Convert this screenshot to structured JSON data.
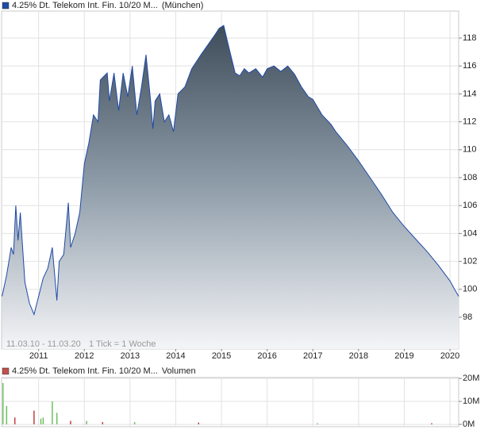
{
  "chart_data": [
    {
      "type": "area",
      "x": [
        2010.2,
        2010.3,
        2010.4,
        2010.45,
        2010.5,
        2010.55,
        2010.6,
        2010.7,
        2010.8,
        2010.9,
        2011.0,
        2011.1,
        2011.2,
        2011.3,
        2011.4,
        2011.45,
        2011.55,
        2011.65,
        2011.7,
        2011.8,
        2011.9,
        2012.0,
        2012.1,
        2012.2,
        2012.3,
        2012.35,
        2012.5,
        2012.55,
        2012.65,
        2012.75,
        2012.85,
        2012.95,
        2013.05,
        2013.15,
        2013.25,
        2013.35,
        2013.45,
        2013.5,
        2013.55,
        2013.65,
        2013.75,
        2013.85,
        2013.95,
        2014.05,
        2014.2,
        2014.35,
        2014.55,
        2014.7,
        2014.85,
        2014.95,
        2015.05,
        2015.15,
        2015.3,
        2015.4,
        2015.5,
        2015.6,
        2015.75,
        2015.9,
        2016.0,
        2016.15,
        2016.3,
        2016.45,
        2016.6,
        2016.75,
        2016.9,
        2017.0,
        2017.2,
        2017.4,
        2017.5,
        2017.75,
        2018.0,
        2018.25,
        2018.5,
        2018.75,
        2019.0,
        2019.25,
        2019.5,
        2019.75,
        2020.0,
        2020.1,
        2020.19
      ],
      "series": [
        {
          "name": "4.25% Dt. Telekom Int. Fin. 10/20 M...",
          "color": "#1f4aa8",
          "values": [
            99.5,
            101,
            103,
            102.5,
            106,
            103.5,
            105.5,
            100.5,
            99,
            98.2,
            99.5,
            100.8,
            101.5,
            103,
            99.2,
            102,
            102.5,
            106.2,
            103,
            104,
            105.5,
            109,
            110.5,
            112.5,
            112,
            115,
            115.5,
            113.5,
            115.5,
            112.8,
            115.5,
            113.8,
            116,
            112.5,
            114.5,
            116.8,
            113.5,
            111.5,
            113.5,
            114,
            112,
            112.5,
            111.3,
            114,
            114.5,
            115.8,
            116.8,
            117.5,
            118.2,
            118.7,
            118.9,
            117.5,
            115.5,
            115.3,
            115.8,
            115.5,
            115.8,
            115.2,
            115.8,
            116,
            115.6,
            116,
            115.4,
            114.5,
            113.8,
            113.6,
            112.5,
            111.8,
            111.3,
            110.3,
            109.2,
            108,
            106.8,
            105.5,
            104.5,
            103.6,
            102.7,
            101.7,
            100.6,
            100.0,
            99.5
          ]
        }
      ],
      "legend_suffix": "(München)",
      "annotations": [
        "11.03.10 - 11.03.20",
        "1 Tick = 1 Woche"
      ],
      "xlim": [
        2010.19,
        2020.19
      ],
      "xticks": [
        2011,
        2012,
        2013,
        2014,
        2015,
        2016,
        2017,
        2018,
        2019,
        2020
      ],
      "ylim": [
        95.73,
        119.93
      ],
      "yticks": [
        98,
        100,
        102,
        104,
        106,
        108,
        110,
        112,
        114,
        116,
        118
      ],
      "grid": true
    },
    {
      "type": "bar",
      "x": [
        2010.22,
        2010.3,
        2010.48,
        2010.9,
        2011.05,
        2011.1,
        2011.3,
        2011.4,
        2011.7,
        2012.05,
        2012.4,
        2013.1,
        2014.5,
        2017.1,
        2019.6
      ],
      "series": [
        {
          "name": "4.25% Dt. Telekom Int. Fin. 10/20 M...",
          "color": "#c0504d",
          "values": [
            18,
            8,
            3,
            6,
            2.5,
            3,
            10,
            5,
            1.5,
            1.5,
            1,
            1,
            0.8,
            0.5,
            0.5
          ]
        }
      ],
      "bar_colors": [
        "#6cc060",
        "#6cc060",
        "#c04040",
        "#c04040",
        "#6cc060",
        "#6cc060",
        "#6cc060",
        "#6cc060",
        "#c04040",
        "#6cc060",
        "#c04040",
        "#6cc060",
        "#c04040",
        "#6cc060",
        "#c04040"
      ],
      "legend_suffix": "Volumen",
      "xlim": [
        2010.19,
        2020.19
      ],
      "xticks": [
        2011,
        2012,
        2013,
        2014,
        2015,
        2016,
        2017,
        2018,
        2019,
        2020
      ],
      "ylim": [
        -1,
        20.4
      ],
      "yticks": [
        {
          "value": 0,
          "label": "0M"
        },
        {
          "value": 10,
          "label": "10M"
        },
        {
          "value": 20,
          "label": "20M"
        }
      ],
      "grid": true
    }
  ]
}
